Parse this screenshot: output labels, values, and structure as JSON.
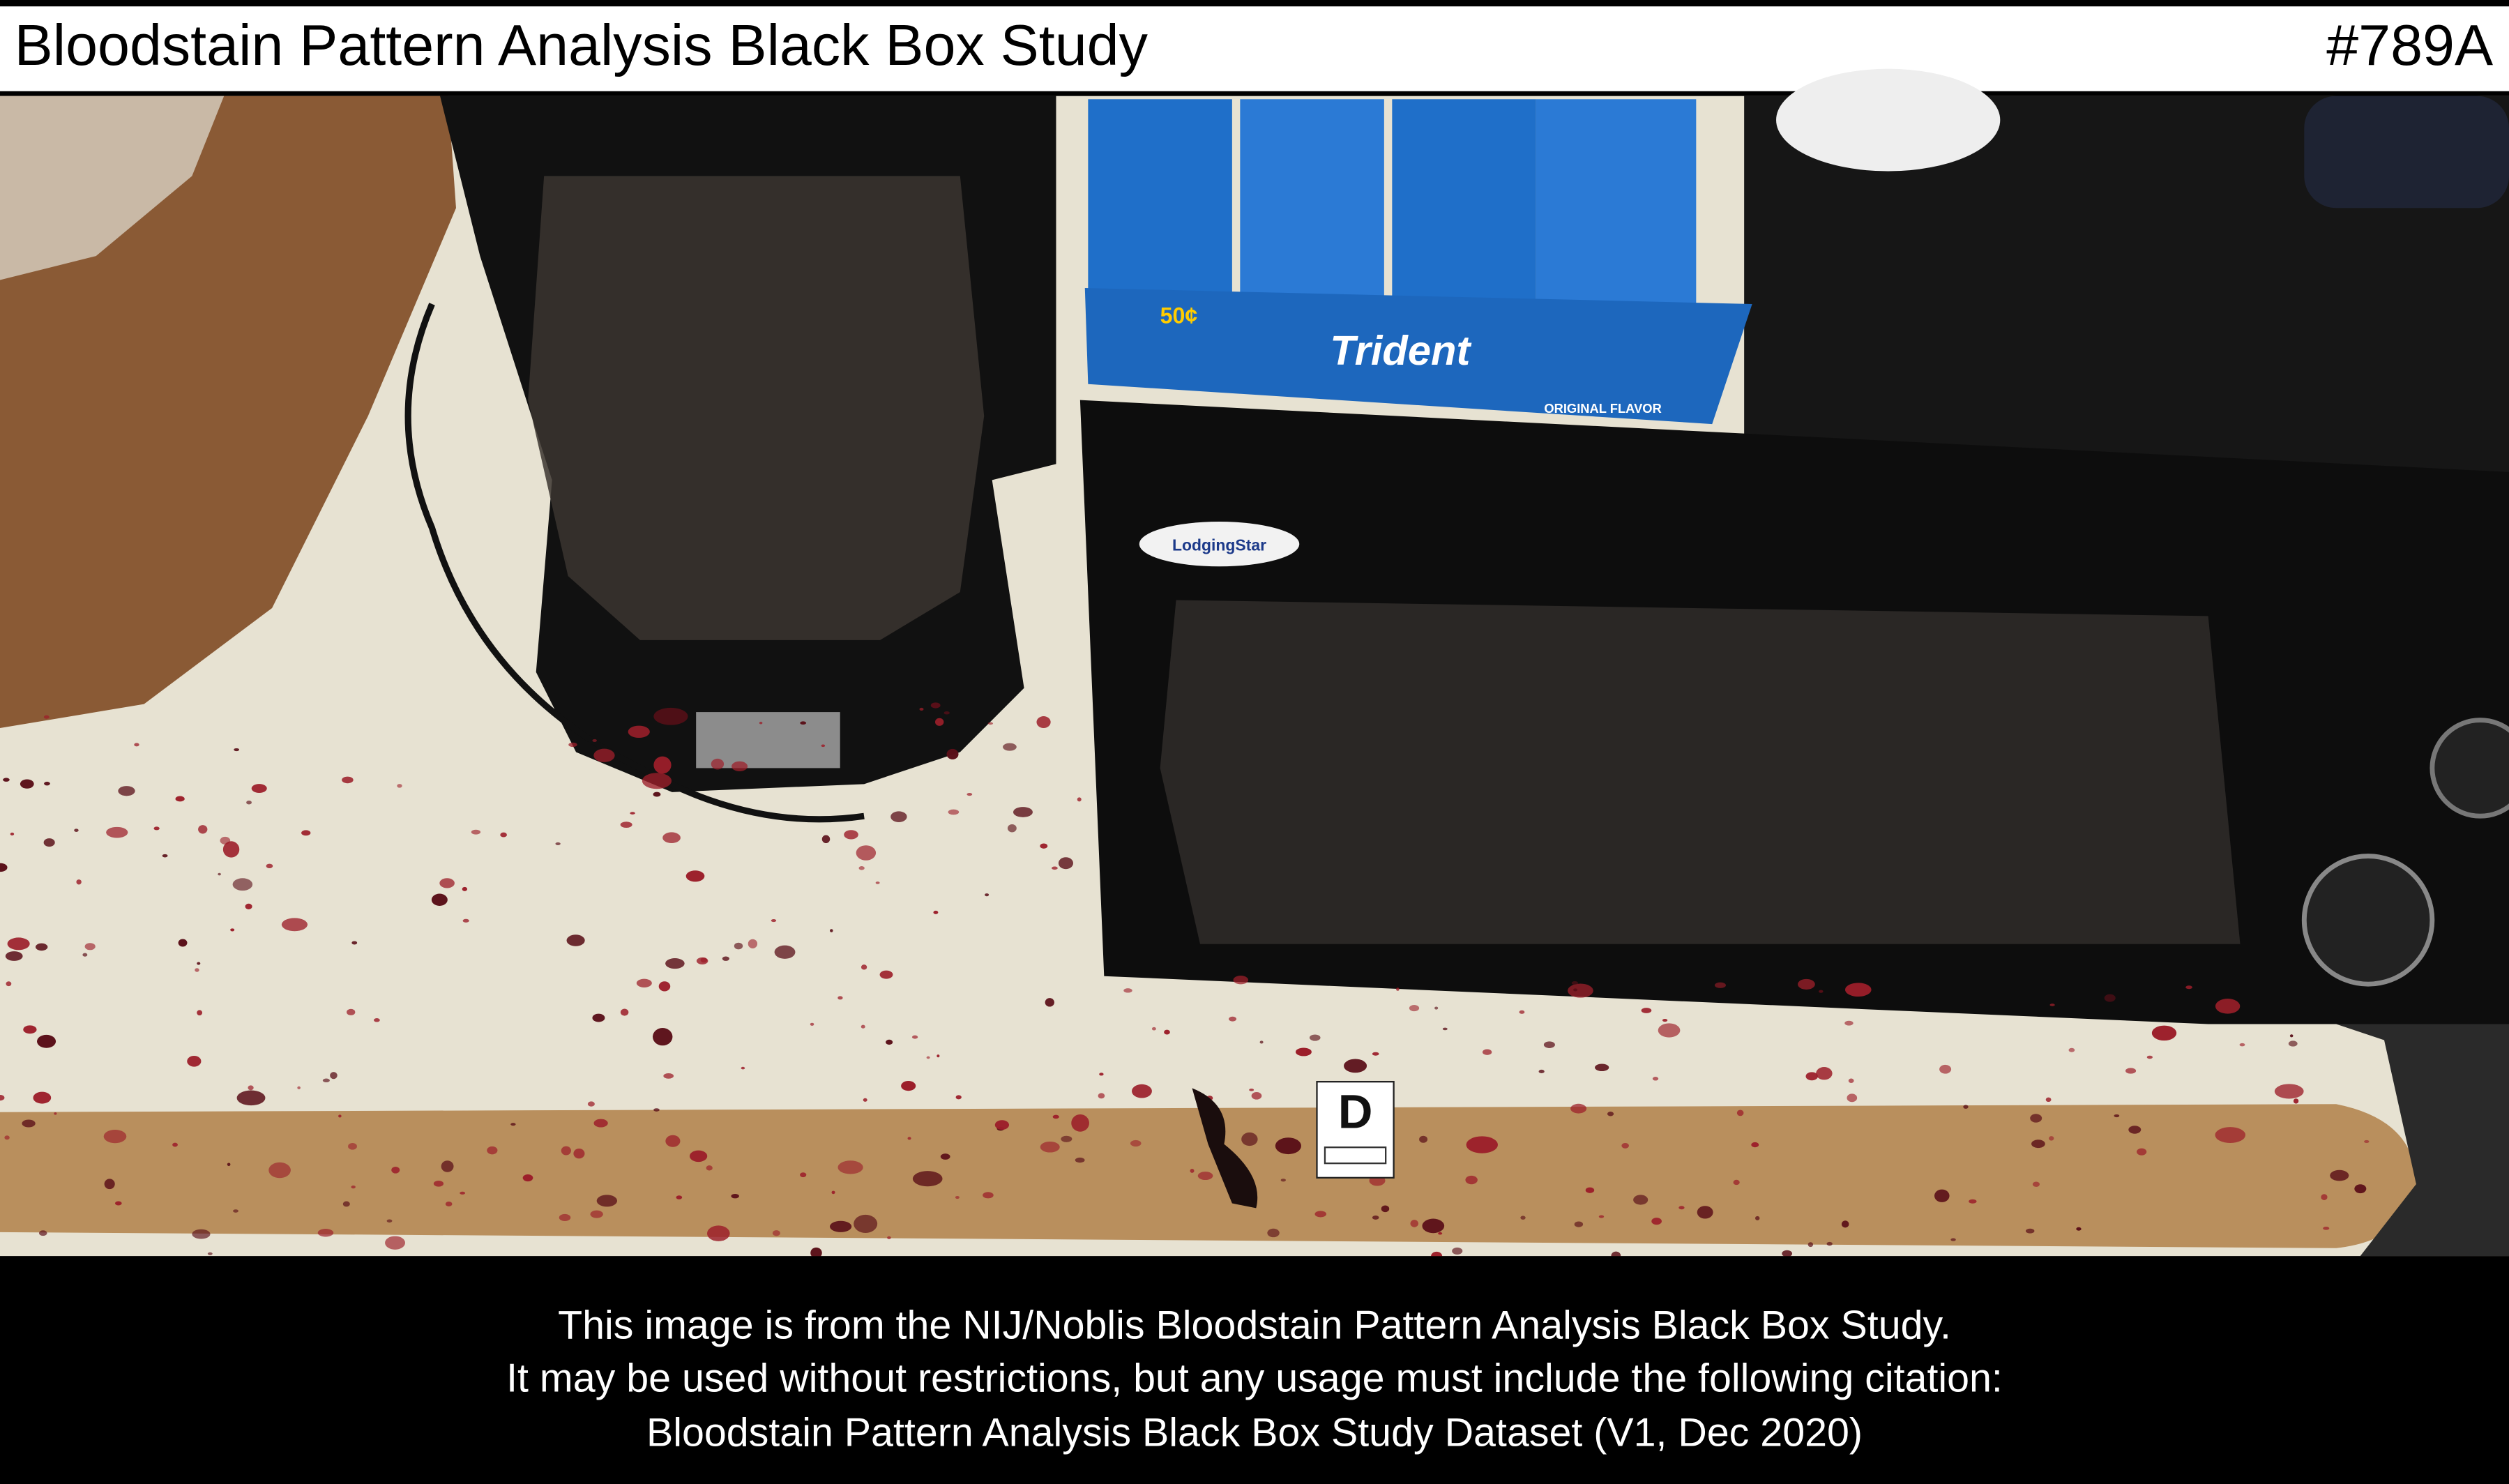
{
  "header": {
    "title": "Bloodstain Pattern Analysis Black Box Study",
    "id": "#789A"
  },
  "photo": {
    "gum_brand": "Trident",
    "gum_price": "50¢",
    "gum_flavor": "ORIGINAL FLAVOR",
    "microwave_brand": "LodgingStar",
    "evidence_marker": "D"
  },
  "footer": {
    "lines": [
      "This image is from the NIJ/Noblis Bloodstain Pattern Analysis Black Box Study.",
      "It may be used without restrictions, but any usage must include the following citation:",
      "Bloodstain Pattern Analysis Black Box Study Dataset (V1, Dec 2020)"
    ]
  }
}
